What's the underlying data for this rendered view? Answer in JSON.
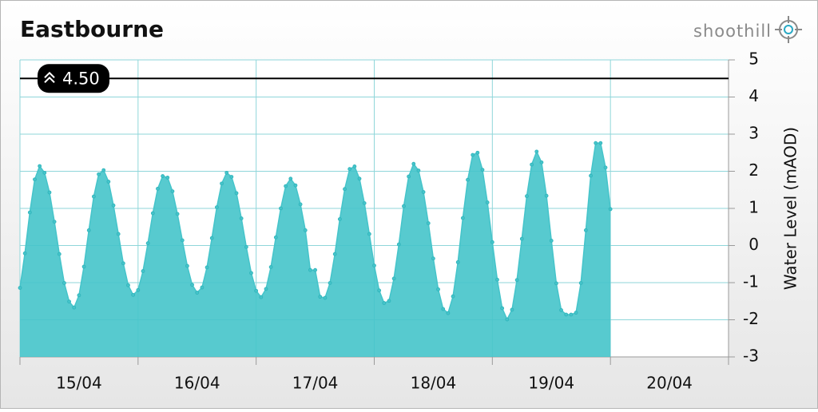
{
  "header": {
    "logo": "shoothill"
  },
  "chart_data": {
    "type": "area",
    "title": "Eastbourne",
    "y_label": "Water Level (mAOD)",
    "y_axis_side": "right",
    "grid": true,
    "xlim": [
      0,
      144
    ],
    "xticks": [
      {
        "value": 12,
        "label": "15/04"
      },
      {
        "value": 36,
        "label": "16/04"
      },
      {
        "value": 60,
        "label": "17/04"
      },
      {
        "value": 84,
        "label": "18/04"
      },
      {
        "value": 108,
        "label": "19/04"
      },
      {
        "value": 132,
        "label": "20/04"
      }
    ],
    "xgrid": [
      0,
      24,
      48,
      72,
      96,
      120,
      144
    ],
    "ylim": [
      -3,
      5
    ],
    "yticks": [
      -3,
      -2,
      -1,
      0,
      1,
      2,
      3,
      4,
      5
    ],
    "threshold": {
      "value": 4.5,
      "label": "4.50"
    },
    "series": [
      {
        "color": "#45c4ca",
        "x": [
          0,
          1,
          2,
          3,
          4,
          5,
          6,
          7,
          8,
          9,
          10,
          11,
          12,
          13,
          14,
          15,
          16,
          17,
          18,
          19,
          20,
          21,
          22,
          23,
          24,
          25,
          26,
          27,
          28,
          29,
          30,
          31,
          32,
          33,
          34,
          35,
          36,
          37,
          38,
          39,
          40,
          41,
          42,
          43,
          44,
          45,
          46,
          47,
          48,
          49,
          50,
          51,
          52,
          53,
          54,
          55,
          56,
          57,
          58,
          59,
          60,
          61,
          62,
          63,
          64,
          65,
          66,
          67,
          68,
          69,
          70,
          71,
          72,
          73,
          74,
          75,
          76,
          77,
          78,
          79,
          80,
          81,
          82,
          83,
          84,
          85,
          86,
          87,
          88,
          89,
          90,
          91,
          92,
          93,
          94,
          95,
          96,
          97,
          98,
          99,
          100,
          101,
          102,
          103,
          104,
          105,
          106,
          107,
          108,
          109,
          110,
          111,
          112,
          113,
          114,
          115,
          116,
          117,
          118,
          119,
          120
        ],
        "values": [
          -1.14,
          -0.21,
          0.89,
          1.78,
          2.14,
          1.96,
          1.43,
          0.64,
          -0.23,
          -1.01,
          -1.51,
          -1.67,
          -1.34,
          -0.57,
          0.41,
          1.32,
          1.92,
          2.03,
          1.72,
          1.08,
          0.31,
          -0.48,
          -1.07,
          -1.33,
          -1.2,
          -0.69,
          0.06,
          0.87,
          1.53,
          1.87,
          1.83,
          1.46,
          0.85,
          0.14,
          -0.55,
          -1.06,
          -1.27,
          -1.13,
          -0.59,
          0.2,
          1.03,
          1.67,
          1.96,
          1.85,
          1.41,
          0.73,
          -0.04,
          -0.74,
          -1.22,
          -1.39,
          -1.17,
          -0.58,
          0.22,
          1.0,
          1.6,
          1.8,
          1.62,
          1.11,
          0.41,
          -0.66,
          -0.66,
          -1.38,
          -1.41,
          -1.01,
          -0.23,
          0.71,
          1.52,
          2.06,
          2.13,
          1.8,
          1.14,
          0.31,
          -0.54,
          -1.21,
          -1.55,
          -1.49,
          -0.89,
          0.03,
          1.06,
          1.86,
          2.2,
          2.02,
          1.44,
          0.6,
          -0.35,
          -1.18,
          -1.71,
          -1.82,
          -1.37,
          -0.45,
          0.74,
          1.77,
          2.44,
          2.5,
          2.04,
          1.16,
          0.09,
          -0.92,
          -1.69,
          -1.99,
          -1.73,
          -0.93,
          0.18,
          1.33,
          2.18,
          2.53,
          2.24,
          1.34,
          0.13,
          -1.02,
          -1.74,
          -1.86,
          -1.86,
          -1.81,
          -1.01,
          0.41,
          1.88,
          2.76,
          2.76,
          2.1,
          0.98
        ]
      }
    ]
  }
}
